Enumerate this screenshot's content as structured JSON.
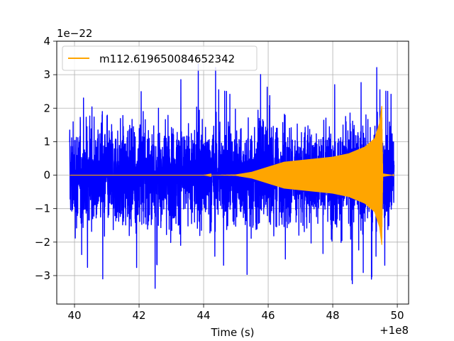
{
  "chart_data": {
    "type": "line",
    "xlabel": "Time (s)",
    "ylabel": "",
    "xlim": [
      39.45,
      50.35
    ],
    "ylim": [
      -3.85,
      4.0
    ],
    "x_offset_label": "+1e8",
    "y_scale_label": "1e−22",
    "xticks": [
      40,
      42,
      44,
      46,
      48,
      50
    ],
    "yticks": [
      -3,
      -2,
      -1,
      0,
      1,
      2,
      3,
      4
    ],
    "grid": true,
    "legend_position": "upper-left",
    "series": [
      {
        "name": "",
        "color": "#0000ff",
        "kind": "noise",
        "x_range": [
          39.85,
          49.9
        ],
        "envelope": {
          "typical": 1.9,
          "max": 3.6,
          "min": -3.5
        }
      },
      {
        "name": "m112.619650084652342",
        "color": "#ffa500",
        "kind": "chirp",
        "x": [
          39.85,
          44.0,
          45.0,
          45.5,
          46.0,
          46.5,
          47.0,
          47.5,
          48.0,
          48.5,
          49.0,
          49.3,
          49.45,
          49.52,
          49.55,
          49.9
        ],
        "amplitude": [
          0.0,
          0.0,
          0.02,
          0.1,
          0.25,
          0.4,
          0.45,
          0.5,
          0.55,
          0.65,
          0.85,
          1.1,
          1.55,
          2.1,
          0.05,
          0.0
        ]
      }
    ]
  }
}
